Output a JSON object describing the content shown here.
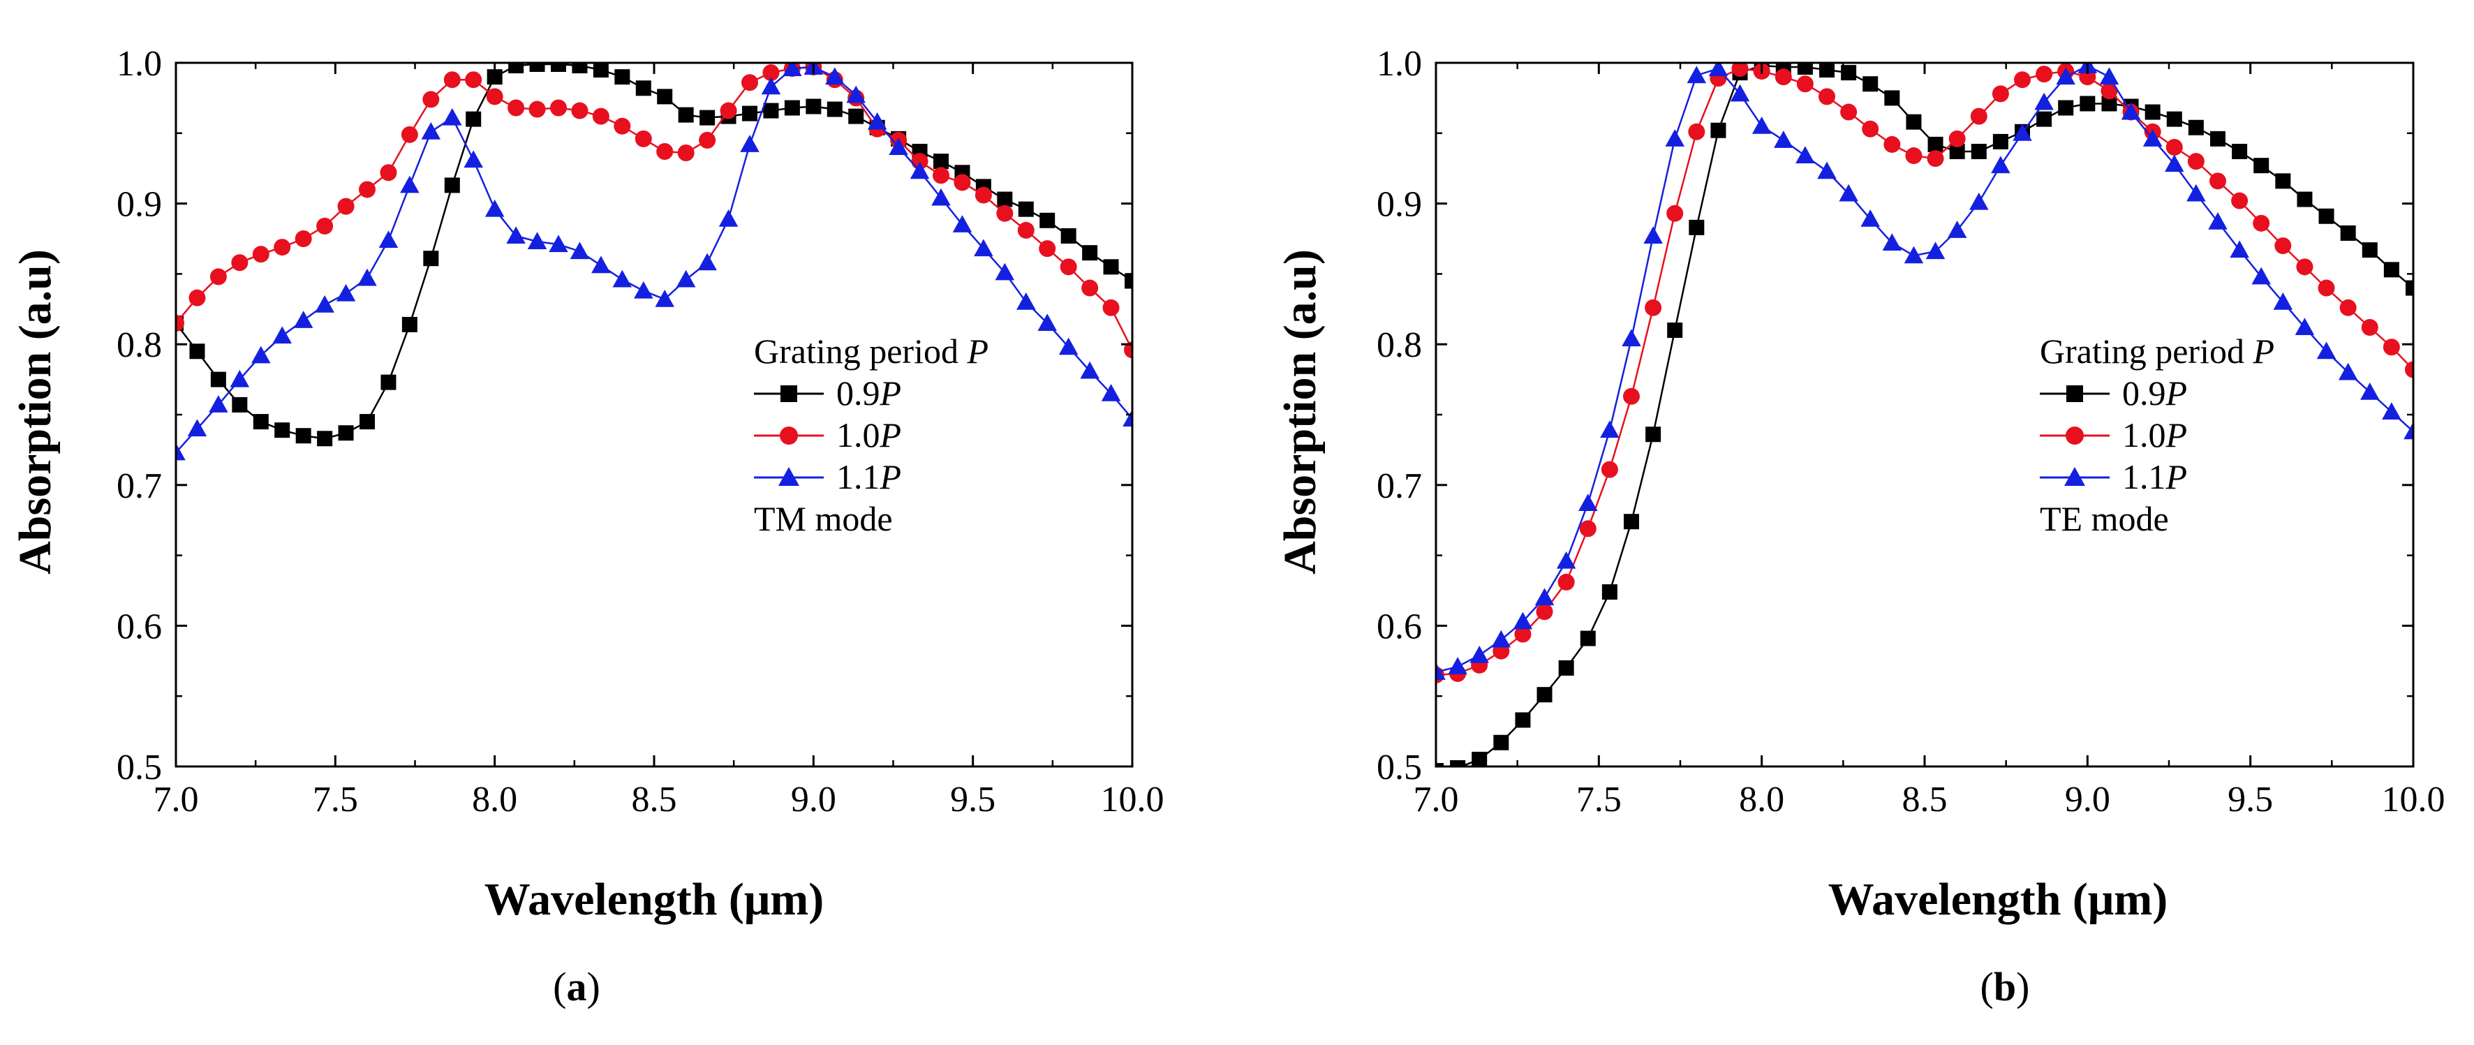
{
  "chart_data": [
    {
      "type": "line",
      "panel_label": "a",
      "title": "",
      "xlabel": "Wavelength (μm)",
      "ylabel": "Absorption (a.u)",
      "xlim": [
        7.0,
        10.0
      ],
      "ylim": [
        0.5,
        1.0
      ],
      "xticks": [
        "7.0",
        "7.5",
        "8.0",
        "8.5",
        "9.0",
        "9.5",
        "10.0"
      ],
      "yticks": [
        "0.5",
        "0.6",
        "0.7",
        "0.8",
        "0.9",
        "1.0"
      ],
      "legend_title": "Grating period P",
      "legend_title_prefix": "Grating period ",
      "legend_title_italic": "P",
      "mode_label": "TM mode",
      "legend_position": "center-right",
      "x": [
        7.0,
        7.0667,
        7.1333,
        7.2,
        7.2667,
        7.3333,
        7.4,
        7.4667,
        7.5333,
        7.6,
        7.6667,
        7.7333,
        7.8,
        7.8667,
        7.9333,
        8.0,
        8.0667,
        8.1333,
        8.2,
        8.2667,
        8.3333,
        8.4,
        8.4667,
        8.5333,
        8.6,
        8.6667,
        8.7333,
        8.8,
        8.8667,
        8.9333,
        9.0,
        9.0667,
        9.1333,
        9.2,
        9.2667,
        9.3333,
        9.4,
        9.4667,
        9.5333,
        9.6,
        9.6667,
        9.7333,
        9.8,
        9.8667,
        9.9333,
        10.0
      ],
      "series": [
        {
          "name": "0.9P",
          "prefix": "0.9",
          "italic": "P",
          "color": "#000000",
          "marker": "square",
          "values": [
            0.815,
            0.795,
            0.775,
            0.757,
            0.745,
            0.739,
            0.735,
            0.733,
            0.737,
            0.745,
            0.773,
            0.814,
            0.861,
            0.913,
            0.96,
            0.99,
            0.998,
            0.999,
            0.999,
            0.998,
            0.995,
            0.99,
            0.982,
            0.976,
            0.963,
            0.961,
            0.962,
            0.964,
            0.966,
            0.968,
            0.969,
            0.967,
            0.962,
            0.954,
            0.946,
            0.937,
            0.93,
            0.922,
            0.912,
            0.903,
            0.896,
            0.888,
            0.877,
            0.865,
            0.855,
            0.845
          ]
        },
        {
          "name": "1.0P",
          "prefix": "1.0",
          "italic": "P",
          "color": "#e8101e",
          "marker": "circle",
          "values": [
            0.815,
            0.833,
            0.848,
            0.858,
            0.864,
            0.869,
            0.875,
            0.884,
            0.898,
            0.91,
            0.922,
            0.949,
            0.974,
            0.988,
            0.988,
            0.976,
            0.968,
            0.967,
            0.968,
            0.966,
            0.962,
            0.955,
            0.946,
            0.937,
            0.936,
            0.945,
            0.966,
            0.986,
            0.993,
            0.996,
            0.997,
            0.988,
            0.975,
            0.953,
            0.945,
            0.93,
            0.92,
            0.915,
            0.906,
            0.893,
            0.881,
            0.868,
            0.855,
            0.84,
            0.826,
            0.796
          ]
        },
        {
          "name": "1.1P",
          "prefix": "1.1",
          "italic": "P",
          "color": "#1420e0",
          "marker": "triangle",
          "values": [
            0.723,
            0.74,
            0.757,
            0.775,
            0.792,
            0.806,
            0.817,
            0.828,
            0.836,
            0.847,
            0.874,
            0.913,
            0.951,
            0.961,
            0.931,
            0.896,
            0.877,
            0.873,
            0.871,
            0.866,
            0.856,
            0.846,
            0.838,
            0.832,
            0.846,
            0.858,
            0.889,
            0.942,
            0.983,
            0.996,
            0.997,
            0.99,
            0.977,
            0.958,
            0.94,
            0.923,
            0.904,
            0.885,
            0.868,
            0.851,
            0.83,
            0.815,
            0.798,
            0.781,
            0.765,
            0.747
          ]
        }
      ]
    },
    {
      "type": "line",
      "panel_label": "b",
      "title": "",
      "xlabel": "Wavelength (μm)",
      "ylabel": "Absorption (a.u)",
      "xlim": [
        7.0,
        10.0
      ],
      "ylim": [
        0.5,
        1.0
      ],
      "xticks": [
        "7.0",
        "7.5",
        "8.0",
        "8.5",
        "9.0",
        "9.5",
        "10.0"
      ],
      "yticks": [
        "0.5",
        "0.6",
        "0.7",
        "0.8",
        "0.9",
        "1.0"
      ],
      "legend_title": "Grating period P",
      "legend_title_prefix": "Grating period ",
      "legend_title_italic": "P",
      "mode_label": "TE mode",
      "legend_position": "center-right",
      "x": [
        7.0,
        7.0667,
        7.1333,
        7.2,
        7.2667,
        7.3333,
        7.4,
        7.4667,
        7.5333,
        7.6,
        7.6667,
        7.7333,
        7.8,
        7.8667,
        7.9333,
        8.0,
        8.0667,
        8.1333,
        8.2,
        8.2667,
        8.3333,
        8.4,
        8.4667,
        8.5333,
        8.6,
        8.6667,
        8.7333,
        8.8,
        8.8667,
        8.9333,
        9.0,
        9.0667,
        9.1333,
        9.2,
        9.2667,
        9.3333,
        9.4,
        9.4667,
        9.5333,
        9.6,
        9.6667,
        9.7333,
        9.8,
        9.8667,
        9.9333,
        10.0
      ],
      "series": [
        {
          "name": "0.9P",
          "prefix": "0.9",
          "italic": "P",
          "color": "#000000",
          "marker": "square",
          "values": [
            0.497,
            0.499,
            0.505,
            0.517,
            0.533,
            0.551,
            0.57,
            0.591,
            0.624,
            0.674,
            0.736,
            0.81,
            0.883,
            0.952,
            0.993,
            0.998,
            0.997,
            0.997,
            0.995,
            0.993,
            0.985,
            0.975,
            0.958,
            0.942,
            0.937,
            0.937,
            0.944,
            0.951,
            0.96,
            0.968,
            0.971,
            0.971,
            0.969,
            0.965,
            0.96,
            0.954,
            0.946,
            0.937,
            0.927,
            0.916,
            0.903,
            0.891,
            0.879,
            0.867,
            0.853,
            0.84
          ]
        },
        {
          "name": "1.0P",
          "prefix": "1.0",
          "italic": "P",
          "color": "#e8101e",
          "marker": "circle",
          "values": [
            0.565,
            0.566,
            0.572,
            0.582,
            0.594,
            0.61,
            0.631,
            0.669,
            0.711,
            0.763,
            0.826,
            0.893,
            0.951,
            0.989,
            0.996,
            0.994,
            0.99,
            0.985,
            0.976,
            0.965,
            0.953,
            0.942,
            0.934,
            0.932,
            0.946,
            0.962,
            0.978,
            0.988,
            0.992,
            0.994,
            0.99,
            0.98,
            0.965,
            0.951,
            0.94,
            0.93,
            0.916,
            0.902,
            0.886,
            0.87,
            0.855,
            0.84,
            0.826,
            0.812,
            0.798,
            0.782
          ]
        },
        {
          "name": "1.1P",
          "prefix": "1.1",
          "italic": "P",
          "color": "#1420e0",
          "marker": "triangle",
          "values": [
            0.567,
            0.571,
            0.579,
            0.59,
            0.603,
            0.62,
            0.646,
            0.687,
            0.739,
            0.804,
            0.877,
            0.946,
            0.991,
            0.996,
            0.978,
            0.955,
            0.945,
            0.934,
            0.923,
            0.907,
            0.889,
            0.872,
            0.863,
            0.866,
            0.881,
            0.901,
            0.927,
            0.95,
            0.972,
            0.99,
            0.998,
            0.99,
            0.965,
            0.946,
            0.928,
            0.907,
            0.887,
            0.867,
            0.848,
            0.83,
            0.812,
            0.795,
            0.78,
            0.766,
            0.752,
            0.738
          ]
        }
      ]
    }
  ]
}
